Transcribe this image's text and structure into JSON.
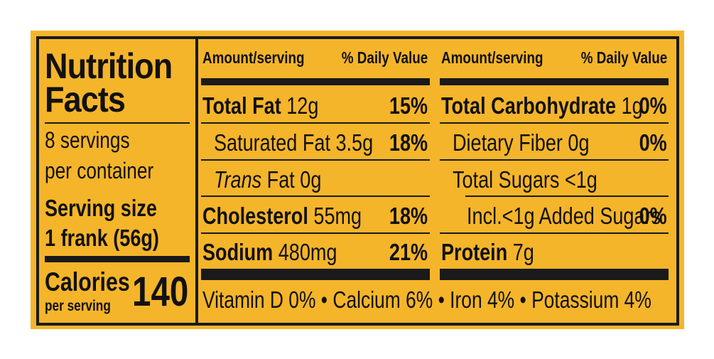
{
  "title_line1": "Nutrition",
  "title_line2": "Facts",
  "servings_line1": "8 servings",
  "servings_line2": "per container",
  "serving_size_label": "Serving size",
  "serving_size_value": "1 frank (56g)",
  "calories_label": "Calories",
  "calories_sub": "per serving",
  "calories_value": "140",
  "header": {
    "amount": "Amount/serving",
    "daily": "% Daily Value"
  },
  "left_rows": [
    {
      "name": "Total Fat",
      "amount": "12g",
      "dv": "15%"
    },
    {
      "name": "Saturated Fat",
      "amount": "3.5g",
      "dv": "18%"
    },
    {
      "name": "Trans",
      "amount": "Fat 0g",
      "dv": ""
    },
    {
      "name": "Cholesterol",
      "amount": "55mg",
      "dv": "18%"
    },
    {
      "name": "Sodium",
      "amount": "480mg",
      "dv": "21%"
    }
  ],
  "right_rows": [
    {
      "name": "Total Carbohydrate",
      "amount": "1g",
      "dv": "0%"
    },
    {
      "name": "Dietary Fiber",
      "amount": "0g",
      "dv": "0%"
    },
    {
      "name": "Total Sugars",
      "amount": "<1g",
      "dv": ""
    },
    {
      "name": "Incl.<1g Added Sugars",
      "amount": "",
      "dv": "0%"
    },
    {
      "name": "Protein",
      "amount": "7g",
      "dv": ""
    }
  ],
  "vitamins": [
    "Vitamin D 0%",
    "Calcium 6%",
    "Iron 4%",
    "Potassium 4%"
  ],
  "bullet": "•",
  "colors": {
    "background": "#f5b52a",
    "ink": "#1a1a1a"
  }
}
